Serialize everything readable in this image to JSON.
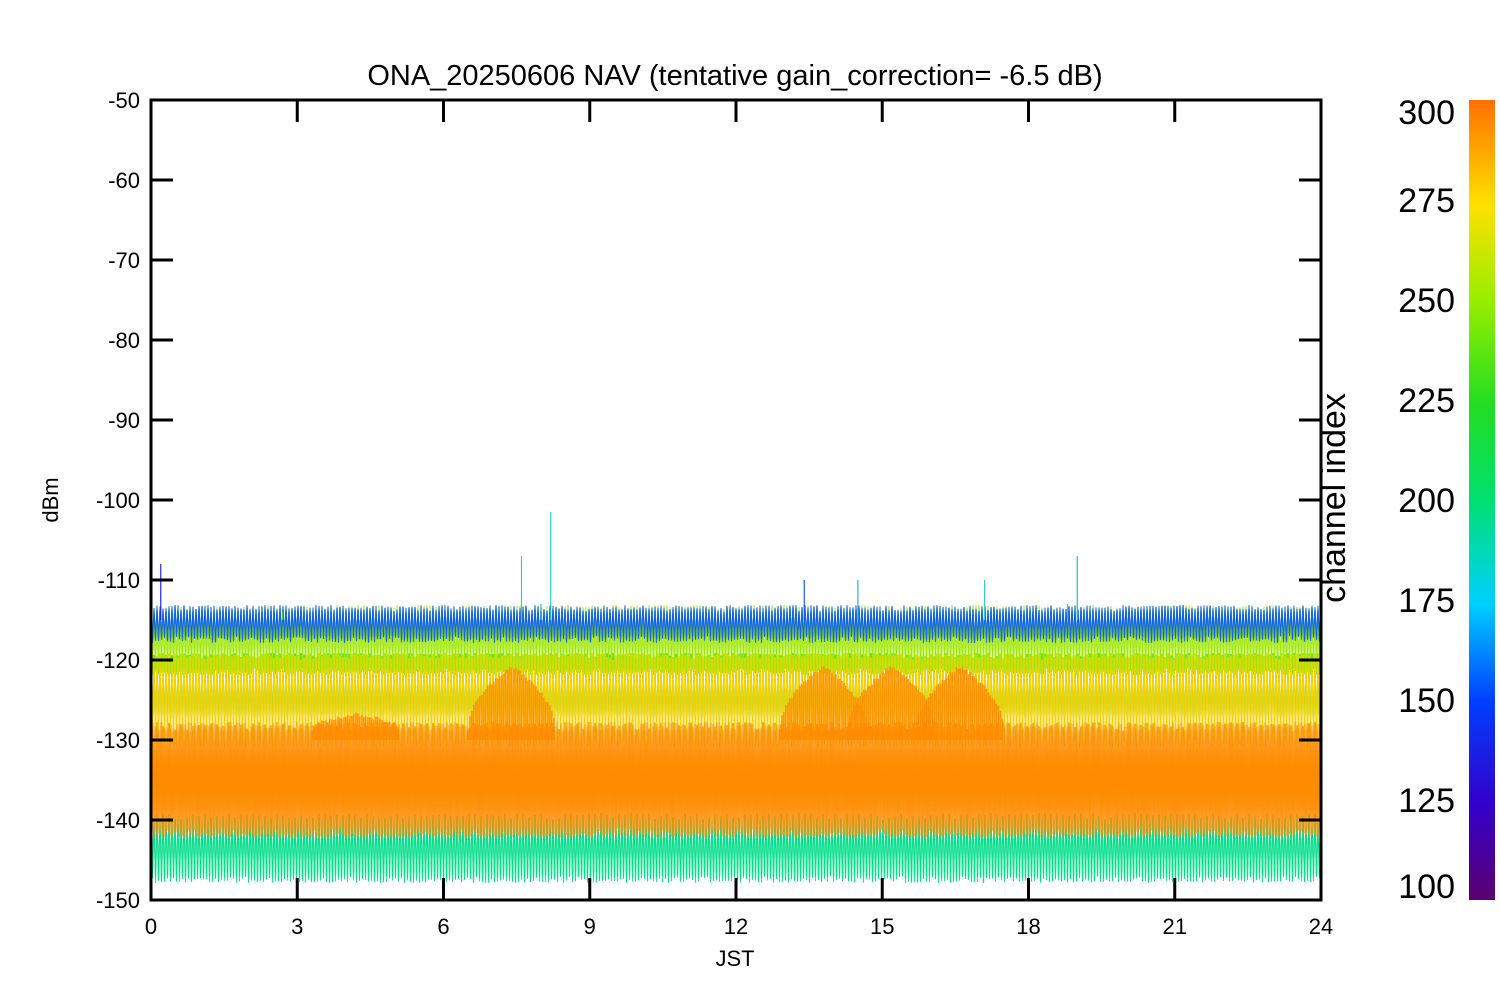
{
  "chart_data": {
    "type": "line",
    "title": "ONA_20250606 NAV (tentative gain_correction= -6.5 dB)",
    "xlabel": "JST",
    "ylabel": "dBm",
    "xlim": [
      0,
      24
    ],
    "ylim": [
      -150,
      -50
    ],
    "x_ticks": [
      "0",
      "3",
      "6",
      "9",
      "12",
      "15",
      "18",
      "21",
      "24"
    ],
    "y_ticks": [
      "-50",
      "-60",
      "-70",
      "-80",
      "-90",
      "-100",
      "-110",
      "-120",
      "-130",
      "-140",
      "-150"
    ],
    "grid": false,
    "legend": "colorbar-right",
    "colorbar": {
      "label": "channel index",
      "range": [
        100,
        300
      ],
      "ticks": [
        "100",
        "125",
        "150",
        "175",
        "200",
        "225",
        "250",
        "275",
        "300"
      ],
      "colormap": "rainbow"
    },
    "series": [
      {
        "channel": 290,
        "band": [
          -141,
          -129
        ],
        "color": "#ff8c00",
        "description": "dominant noise floor band"
      },
      {
        "channel": 260,
        "band": [
          -121,
          -114
        ],
        "color": "#9ee600",
        "description": "upper band"
      },
      {
        "channel": 150,
        "band": [
          -117,
          -114
        ],
        "color": "#0a62e6"
      },
      {
        "channel": 225,
        "band": [
          -130,
          -120
        ],
        "color": "#22dd33"
      },
      {
        "channel": 275,
        "band": [
          -130,
          -120
        ],
        "color": "#ffd000"
      },
      {
        "channel": 200,
        "band": [
          -147,
          -140
        ],
        "color": "#00dd88"
      }
    ],
    "bumps": [
      {
        "x_center": 4.2,
        "peak": -127
      },
      {
        "x_center": 7.4,
        "peak": -121
      },
      {
        "x_center": 13.8,
        "peak": -121
      },
      {
        "x_center": 15.2,
        "peak": -121
      },
      {
        "x_center": 16.6,
        "peak": -121
      }
    ],
    "spikes": [
      {
        "x": 0.2,
        "y": -108,
        "color": "#2222ff"
      },
      {
        "x": 2.7,
        "y": -114,
        "color": "#44cc44"
      },
      {
        "x": 7.6,
        "y": -107,
        "color": "#33cccc"
      },
      {
        "x": 8.2,
        "y": -101.5,
        "color": "#22cccc"
      },
      {
        "x": 8.0,
        "y": -113,
        "color": "#33cccc"
      },
      {
        "x": 13.4,
        "y": -110,
        "color": "#2255ff"
      },
      {
        "x": 14.5,
        "y": -110,
        "color": "#33aadd"
      },
      {
        "x": 17.1,
        "y": -110,
        "color": "#33cccc"
      },
      {
        "x": 19.0,
        "y": -107,
        "color": "#22bbcc"
      },
      {
        "x": 18.8,
        "y": -113,
        "color": "#33cccc"
      }
    ]
  }
}
